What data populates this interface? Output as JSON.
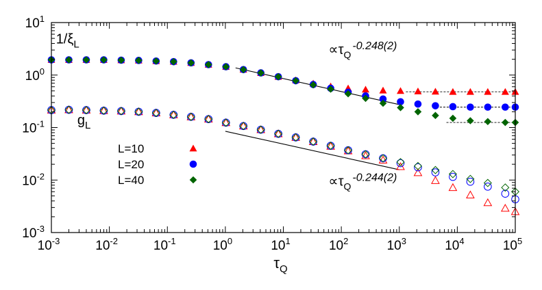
{
  "chart_data": {
    "type": "scatter",
    "xscale": "log",
    "yscale": "log",
    "xlim": [
      0.001,
      100000
    ],
    "ylim": [
      0.001,
      10
    ],
    "xlabel": {
      "base": "τ",
      "sub": "Q"
    },
    "ylabel": "",
    "grid": false,
    "legend_position": "center-left",
    "x_ticks": [
      {
        "base": "10",
        "exp": "-3",
        "value": 0.001
      },
      {
        "base": "10",
        "exp": "-2",
        "value": 0.01
      },
      {
        "base": "10",
        "exp": "-1",
        "value": 0.1
      },
      {
        "base": "10",
        "exp": "0",
        "value": 1
      },
      {
        "base": "10",
        "exp": "1",
        "value": 10
      },
      {
        "base": "10",
        "exp": "2",
        "value": 100
      },
      {
        "base": "10",
        "exp": "3",
        "value": 1000
      },
      {
        "base": "10",
        "exp": "4",
        "value": 10000
      },
      {
        "base": "10",
        "exp": "5",
        "value": 100000
      }
    ],
    "y_ticks": [
      {
        "base": "10",
        "exp": "-3",
        "value": 0.001
      },
      {
        "base": "10",
        "exp": "-2",
        "value": 0.01
      },
      {
        "base": "10",
        "exp": "-1",
        "value": 0.1
      },
      {
        "base": "10",
        "exp": "0",
        "value": 1
      },
      {
        "base": "10",
        "exp": "1",
        "value": 10
      }
    ],
    "x": [
      0.001,
      0.002,
      0.004,
      0.008,
      0.016,
      0.032,
      0.064,
      0.128,
      0.256,
      0.512,
      1.024,
      2.048,
      4.096,
      8.192,
      16.38,
      32.77,
      65.54,
      131.1,
      262.1,
      524.3,
      1049,
      2097,
      4194,
      8389,
      16780,
      33550,
      67110,
      100000
    ],
    "annotations": {
      "xi_label": {
        "text": "1/ξ",
        "sub": "L",
        "x": 0.0012,
        "y": 4.0
      },
      "g_label": {
        "text": "g",
        "sub": "L",
        "x": 0.0028,
        "y": 0.115
      },
      "fit_xi": {
        "prefix": "∝τ",
        "sub": "Q",
        "sup": "-0.248(2)",
        "x": 60,
        "y": 2.5
      },
      "fit_g": {
        "prefix": "∝τ",
        "sub": "Q",
        "sup": "-0.244(2)",
        "x": 60,
        "y": 0.0078
      }
    },
    "fits": [
      {
        "label": "xi",
        "x": [
          1.5,
          1000
        ],
        "y": [
          1.37,
          0.274
        ]
      },
      {
        "label": "g",
        "x": [
          1.0,
          1000
        ],
        "y": [
          0.085,
          0.0157
        ]
      }
    ],
    "plateaus": [
      {
        "x": [
          1300,
          100000
        ],
        "y": 0.48,
        "color": "#000000"
      },
      {
        "x": [
          5000,
          100000
        ],
        "y": 0.245,
        "color": "#000000"
      },
      {
        "x": [
          6500,
          100000
        ],
        "y": 0.125,
        "color": "#000000"
      }
    ],
    "series": [
      {
        "name": "L=10",
        "color": "#ff0000",
        "filled_marker": "triangle",
        "open_marker": "triangle",
        "xi_inv": [
          1.95,
          1.95,
          1.95,
          1.95,
          1.92,
          1.9,
          1.85,
          1.8,
          1.71,
          1.58,
          1.44,
          1.27,
          1.1,
          0.93,
          0.8,
          0.69,
          0.61,
          0.56,
          0.53,
          0.51,
          0.5,
          0.49,
          0.485,
          0.48,
          0.48,
          0.48,
          0.48,
          0.48
        ],
        "g": [
          0.215,
          0.218,
          0.215,
          0.21,
          0.206,
          0.2,
          0.19,
          0.175,
          0.16,
          0.145,
          0.124,
          0.107,
          0.091,
          0.076,
          0.065,
          0.054,
          0.044,
          0.036,
          0.029,
          0.024,
          0.018,
          0.0138,
          0.0098,
          0.0072,
          0.0052,
          0.0037,
          0.0029,
          0.0025
        ]
      },
      {
        "name": "L=20",
        "color": "#0000ff",
        "filled_marker": "circle",
        "open_marker": "circle",
        "xi_inv": [
          1.95,
          1.95,
          1.95,
          1.95,
          1.92,
          1.9,
          1.85,
          1.8,
          1.71,
          1.58,
          1.44,
          1.27,
          1.1,
          0.93,
          0.78,
          0.66,
          0.56,
          0.47,
          0.4,
          0.35,
          0.31,
          0.28,
          0.26,
          0.25,
          0.245,
          0.245,
          0.245,
          0.245
        ],
        "g": [
          0.215,
          0.218,
          0.215,
          0.21,
          0.206,
          0.2,
          0.19,
          0.175,
          0.16,
          0.145,
          0.124,
          0.107,
          0.091,
          0.076,
          0.065,
          0.054,
          0.045,
          0.037,
          0.031,
          0.026,
          0.021,
          0.0175,
          0.014,
          0.0115,
          0.0093,
          0.0075,
          0.0055,
          0.0043
        ]
      },
      {
        "name": "L=40",
        "color": "#006400",
        "filled_marker": "diamond",
        "open_marker": "diamond",
        "xi_inv": [
          1.95,
          1.95,
          1.95,
          1.95,
          1.92,
          1.9,
          1.85,
          1.8,
          1.71,
          1.58,
          1.44,
          1.27,
          1.1,
          0.93,
          0.78,
          0.65,
          0.54,
          0.44,
          0.36,
          0.29,
          0.24,
          0.2,
          0.17,
          0.15,
          0.135,
          0.13,
          0.125,
          0.125
        ],
        "g": [
          0.215,
          0.218,
          0.215,
          0.21,
          0.206,
          0.2,
          0.19,
          0.175,
          0.16,
          0.145,
          0.124,
          0.107,
          0.091,
          0.076,
          0.065,
          0.054,
          0.045,
          0.037,
          0.031,
          0.026,
          0.022,
          0.0185,
          0.0155,
          0.013,
          0.0105,
          0.0088,
          0.0072,
          0.006
        ]
      }
    ]
  }
}
